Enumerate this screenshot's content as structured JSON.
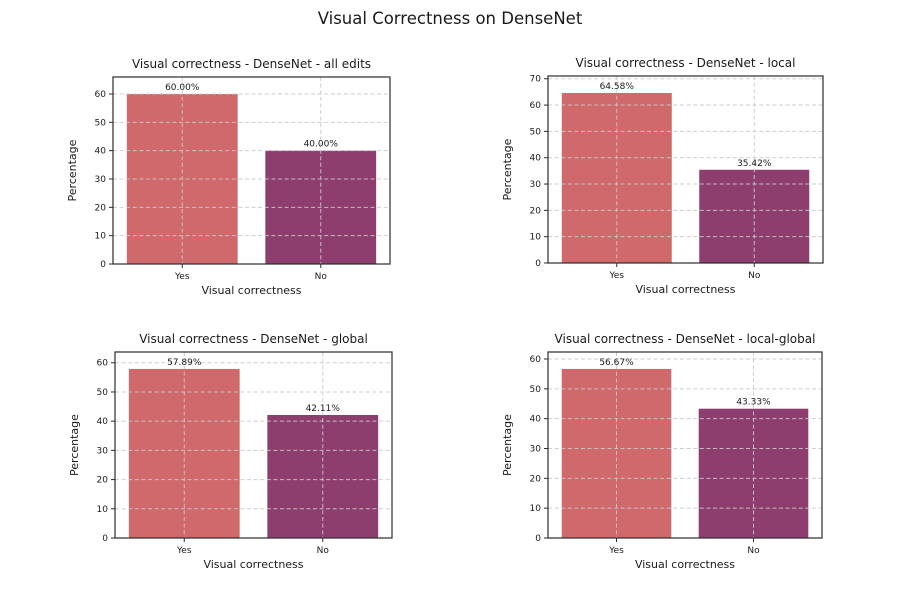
{
  "figure": {
    "suptitle": "Visual Correctness on DenseNet",
    "colors": {
      "yes_bar": "#d0696b",
      "no_bar": "#8e3e6e",
      "grid": "#c9c9c9",
      "spine": "#2b2b2b",
      "text": "#1a1a1a"
    }
  },
  "chart_data": [
    {
      "type": "bar",
      "title": "Visual correctness - DenseNet - all edits",
      "categories": [
        "Yes",
        "No"
      ],
      "values": [
        60.0,
        40.0
      ],
      "value_labels": [
        "60.00%",
        "40.00%"
      ],
      "xlabel": "Visual correctness",
      "ylabel": "Percentage",
      "yticks": [
        0,
        10,
        20,
        30,
        40,
        50,
        60
      ],
      "ylim": [
        0,
        66
      ],
      "grid": "both-dashed",
      "legend": "none"
    },
    {
      "type": "bar",
      "title": "Visual correctness - DenseNet - local",
      "categories": [
        "Yes",
        "No"
      ],
      "values": [
        64.58,
        35.42
      ],
      "value_labels": [
        "64.58%",
        "35.42%"
      ],
      "xlabel": "Visual correctness",
      "ylabel": "Percentage",
      "yticks": [
        0,
        10,
        20,
        30,
        40,
        50,
        60,
        70
      ],
      "ylim": [
        0,
        71.04
      ],
      "grid": "both-dashed",
      "legend": "none"
    },
    {
      "type": "bar",
      "title": "Visual correctness - DenseNet - global",
      "categories": [
        "Yes",
        "No"
      ],
      "values": [
        57.89,
        42.11
      ],
      "value_labels": [
        "57.89%",
        "42.11%"
      ],
      "xlabel": "Visual correctness",
      "ylabel": "Percentage",
      "yticks": [
        0,
        10,
        20,
        30,
        40,
        50,
        60
      ],
      "ylim": [
        0,
        63.68
      ],
      "grid": "both-dashed",
      "legend": "none"
    },
    {
      "type": "bar",
      "title": "Visual correctness - DenseNet - local-global",
      "categories": [
        "Yes",
        "No"
      ],
      "values": [
        56.67,
        43.33
      ],
      "value_labels": [
        "56.67%",
        "43.33%"
      ],
      "xlabel": "Visual correctness",
      "ylabel": "Percentage",
      "yticks": [
        0,
        10,
        20,
        30,
        40,
        50,
        60
      ],
      "ylim": [
        0,
        62.34
      ],
      "grid": "both-dashed",
      "legend": "none"
    }
  ]
}
